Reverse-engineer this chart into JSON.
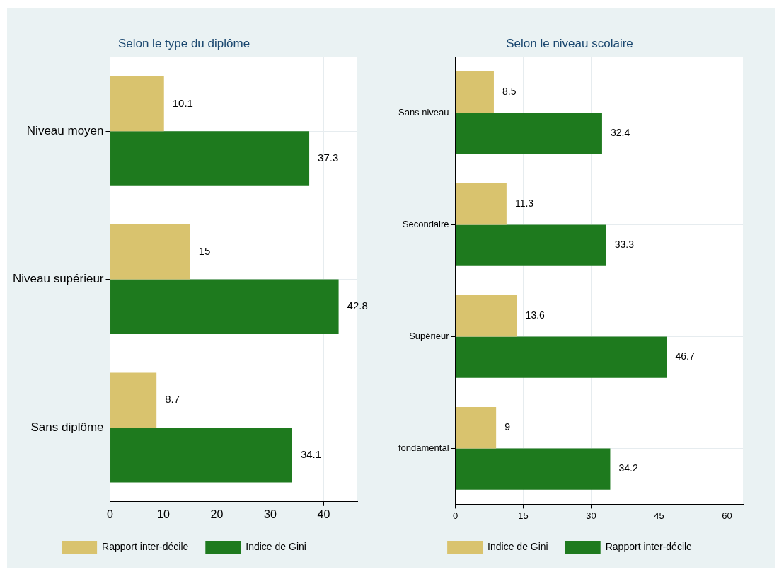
{
  "chart_data": [
    {
      "type": "bar",
      "orientation": "horizontal",
      "title": "Selon le type du diplôme",
      "categories": [
        "Niveau moyen",
        "Niveau supérieur",
        "Sans diplôme"
      ],
      "series": [
        {
          "name": "Rapport inter-décile",
          "color": "#d9c36e",
          "values": [
            10.1,
            15,
            8.7
          ]
        },
        {
          "name": "Indice de Gini",
          "color": "#1e7a1e",
          "values": [
            37.3,
            42.8,
            34.1
          ]
        }
      ],
      "xlim": [
        0,
        46.3
      ],
      "xticks": [
        0,
        10,
        20,
        30,
        40
      ],
      "grid": true,
      "legend": "bottom",
      "data_labels": true
    },
    {
      "type": "bar",
      "orientation": "horizontal",
      "title": "Selon le niveau scolaire",
      "categories": [
        "Sans niveau",
        "Secondaire",
        "Supérieur",
        "fondamental"
      ],
      "series": [
        {
          "name": "Indice de Gini",
          "color": "#d9c36e",
          "values": [
            8.5,
            11.3,
            13.6,
            9
          ]
        },
        {
          "name": "Rapport inter-décile",
          "color": "#1e7a1e",
          "values": [
            32.4,
            33.3,
            46.7,
            34.2
          ]
        }
      ],
      "xlim": [
        0,
        63.5
      ],
      "xticks": [
        0,
        15,
        30,
        45,
        60
      ],
      "grid": true,
      "legend": "bottom",
      "data_labels": true
    }
  ]
}
